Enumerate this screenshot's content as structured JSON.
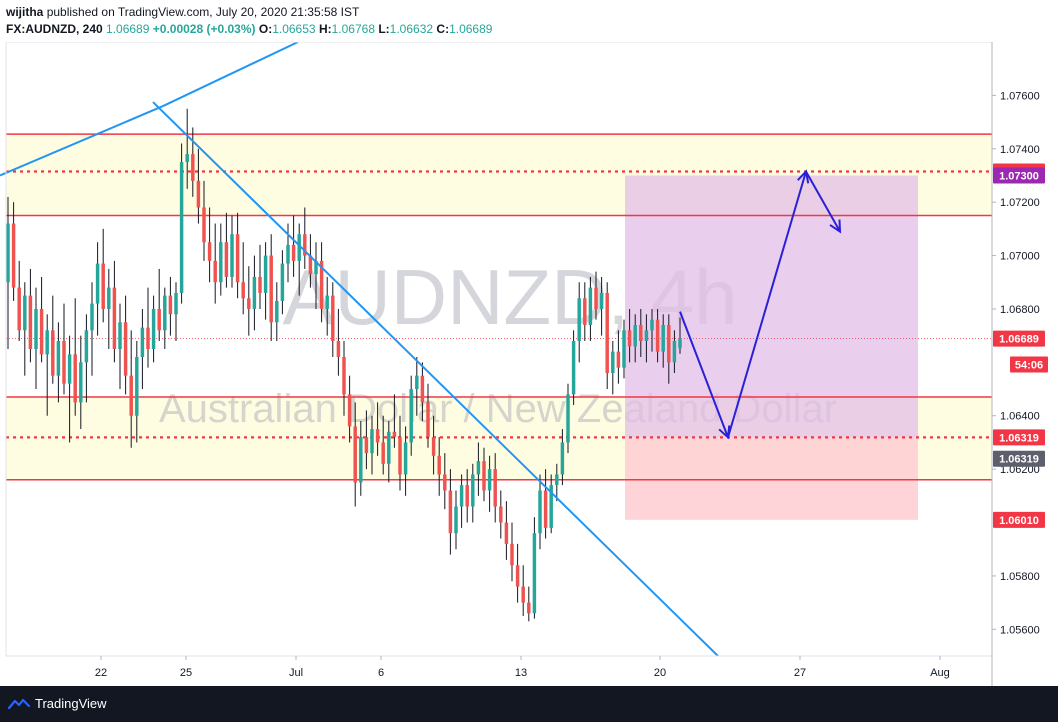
{
  "header": {
    "author": "wijitha",
    "published_text": "published on TradingView.com, July 20, 2020 21:35:58 IST",
    "symbol_interval": "FX:AUDNZD, 240",
    "last": "1.06689",
    "change": "+0.00028 (+0.03%)",
    "open_label": "O:",
    "open": "1.06653",
    "high_label": "H:",
    "high": "1.06768",
    "low_label": "L:",
    "low": "1.06632",
    "close_label": "C:",
    "close": "1.06689",
    "up_arrow": "▲"
  },
  "footer": {
    "logo_text": "TradingView"
  },
  "chart_data": {
    "type": "candlestick",
    "symbol": "AUDNZD",
    "interval": "4h",
    "watermark": {
      "symbol": "AUDNZD, 4h",
      "description": "Australian Dollar / New Zealand Dollar"
    },
    "x_tick_labels": [
      "22",
      "25",
      "Jul",
      "6",
      "13",
      "20",
      "27",
      "Aug"
    ],
    "y_tick_labels": [
      "1.07600",
      "1.07400",
      "1.07200",
      "1.07000",
      "1.06800",
      "1.06400",
      "1.06200",
      "1.05800",
      "1.05600"
    ],
    "ylim": [
      1.055,
      1.078
    ],
    "colors": {
      "up": "#26a69a",
      "down": "#ef5350",
      "zone_fill": "#fffde1",
      "level_line": "#f23645",
      "trendline": "#2196f3",
      "projection": "#2a21d6",
      "target_zone": "#e1bee7",
      "stop_zone": "#ffcdd2",
      "price_tag_red": "#f23645",
      "price_tag_purple": "#9c27b0",
      "price_tag_gray": "#5d606b"
    },
    "price_tags": [
      {
        "label": "1.07315",
        "value": 1.07315,
        "color": "#f23645"
      },
      {
        "label": "1.07300",
        "value": 1.073,
        "color": "#9c27b0"
      },
      {
        "label": "1.06689",
        "value": 1.06689,
        "color": "#f23645"
      },
      {
        "label": "54:06",
        "value": 1.06592,
        "color": "#f23645"
      },
      {
        "label": "1.06319",
        "value": 1.06319,
        "color": "#f23645"
      },
      {
        "label": "1.06319",
        "value": 1.06239,
        "color": "#5d606b"
      },
      {
        "label": "1.06010",
        "value": 1.0601,
        "color": "#f23645"
      }
    ],
    "horizontal_levels": {
      "solid": [
        1.07455,
        1.0715,
        1.0647,
        1.0616
      ],
      "dotted": [
        1.07315,
        1.06319
      ],
      "current_price": 1.06689
    },
    "zones": [
      {
        "top": 1.07455,
        "bottom": 1.0715
      },
      {
        "top": 1.0647,
        "bottom": 1.0616
      }
    ],
    "position_tool": {
      "entry": 1.06319,
      "target": 1.073,
      "stop": 1.0601,
      "from_day": 18.25,
      "to_day": 31.25
    },
    "trendlines": [
      {
        "from": [
          -1.0,
          1.073
        ],
        "to": [
          24.0,
          1.0755
        ]
      },
      {
        "from": [
          23.7,
          1.0756
        ],
        "to": [
          41.5,
          1.0545
        ]
      },
      {
        "from": [
          -1.0,
          1.073
        ],
        "to": [
          5.6,
          1.0792
        ]
      }
    ],
    "projection_path": [
      [
        20.8,
        1.0679
      ],
      [
        23.2,
        1.06319
      ],
      [
        27.3,
        1.07315
      ],
      [
        28.3,
        1.0709
      ]
    ],
    "x_day_ticks": [
      22,
      25,
      31,
      36,
      43,
      50,
      57,
      62
    ],
    "candles": [
      {
        "o": 1.069,
        "h": 1.0722,
        "l": 1.0665,
        "c": 1.0712
      },
      {
        "o": 1.0712,
        "h": 1.072,
        "l": 1.0683,
        "c": 1.0688
      },
      {
        "o": 1.0688,
        "h": 1.0698,
        "l": 1.0668,
        "c": 1.0672
      },
      {
        "o": 1.0672,
        "h": 1.069,
        "l": 1.0655,
        "c": 1.0685
      },
      {
        "o": 1.0685,
        "h": 1.0695,
        "l": 1.066,
        "c": 1.0665
      },
      {
        "o": 1.0665,
        "h": 1.0688,
        "l": 1.065,
        "c": 1.068
      },
      {
        "o": 1.068,
        "h": 1.0692,
        "l": 1.066,
        "c": 1.0663
      },
      {
        "o": 1.0663,
        "h": 1.0678,
        "l": 1.064,
        "c": 1.0672
      },
      {
        "o": 1.0672,
        "h": 1.0685,
        "l": 1.0652,
        "c": 1.0655
      },
      {
        "o": 1.0655,
        "h": 1.0675,
        "l": 1.0645,
        "c": 1.0668
      },
      {
        "o": 1.0668,
        "h": 1.0682,
        "l": 1.0648,
        "c": 1.0652
      },
      {
        "o": 1.0652,
        "h": 1.067,
        "l": 1.063,
        "c": 1.0663
      },
      {
        "o": 1.0663,
        "h": 1.0684,
        "l": 1.064,
        "c": 1.0645
      },
      {
        "o": 1.0645,
        "h": 1.067,
        "l": 1.0635,
        "c": 1.066
      },
      {
        "o": 1.066,
        "h": 1.0678,
        "l": 1.0645,
        "c": 1.0672
      },
      {
        "o": 1.0672,
        "h": 1.069,
        "l": 1.0655,
        "c": 1.0682
      },
      {
        "o": 1.0682,
        "h": 1.0705,
        "l": 1.067,
        "c": 1.0697
      },
      {
        "o": 1.0697,
        "h": 1.071,
        "l": 1.0675,
        "c": 1.068
      },
      {
        "o": 1.068,
        "h": 1.0695,
        "l": 1.0665,
        "c": 1.0688
      },
      {
        "o": 1.0688,
        "h": 1.0698,
        "l": 1.066,
        "c": 1.0665
      },
      {
        "o": 1.0665,
        "h": 1.0682,
        "l": 1.065,
        "c": 1.0675
      },
      {
        "o": 1.0675,
        "h": 1.0685,
        "l": 1.0648,
        "c": 1.0655
      },
      {
        "o": 1.0655,
        "h": 1.0672,
        "l": 1.0628,
        "c": 1.064
      },
      {
        "o": 1.064,
        "h": 1.0668,
        "l": 1.063,
        "c": 1.0662
      },
      {
        "o": 1.0662,
        "h": 1.068,
        "l": 1.065,
        "c": 1.0673
      },
      {
        "o": 1.0673,
        "h": 1.0688,
        "l": 1.0658,
        "c": 1.0665
      },
      {
        "o": 1.0665,
        "h": 1.0685,
        "l": 1.066,
        "c": 1.068
      },
      {
        "o": 1.068,
        "h": 1.0695,
        "l": 1.0668,
        "c": 1.0672
      },
      {
        "o": 1.0672,
        "h": 1.0688,
        "l": 1.0665,
        "c": 1.0685
      },
      {
        "o": 1.0685,
        "h": 1.0692,
        "l": 1.067,
        "c": 1.0678
      },
      {
        "o": 1.0678,
        "h": 1.069,
        "l": 1.0668,
        "c": 1.0686
      },
      {
        "o": 1.0686,
        "h": 1.0742,
        "l": 1.0682,
        "c": 1.0735
      },
      {
        "o": 1.0735,
        "h": 1.0755,
        "l": 1.0725,
        "c": 1.0738
      },
      {
        "o": 1.0738,
        "h": 1.0748,
        "l": 1.0722,
        "c": 1.0728
      },
      {
        "o": 1.0728,
        "h": 1.074,
        "l": 1.0712,
        "c": 1.0718
      },
      {
        "o": 1.0718,
        "h": 1.0728,
        "l": 1.0698,
        "c": 1.0705
      },
      {
        "o": 1.0705,
        "h": 1.0718,
        "l": 1.069,
        "c": 1.0698
      },
      {
        "o": 1.0698,
        "h": 1.0712,
        "l": 1.0682,
        "c": 1.069
      },
      {
        "o": 1.069,
        "h": 1.0712,
        "l": 1.0685,
        "c": 1.0705
      },
      {
        "o": 1.0705,
        "h": 1.0716,
        "l": 1.0688,
        "c": 1.0692
      },
      {
        "o": 1.0692,
        "h": 1.0715,
        "l": 1.0688,
        "c": 1.0708
      },
      {
        "o": 1.0708,
        "h": 1.0716,
        "l": 1.0684,
        "c": 1.069
      },
      {
        "o": 1.069,
        "h": 1.0705,
        "l": 1.0678,
        "c": 1.0684
      },
      {
        "o": 1.0684,
        "h": 1.0696,
        "l": 1.067,
        "c": 1.068
      },
      {
        "o": 1.068,
        "h": 1.07,
        "l": 1.0672,
        "c": 1.0692
      },
      {
        "o": 1.0692,
        "h": 1.0704,
        "l": 1.068,
        "c": 1.0686
      },
      {
        "o": 1.0686,
        "h": 1.0705,
        "l": 1.0676,
        "c": 1.07
      },
      {
        "o": 1.07,
        "h": 1.0708,
        "l": 1.0668,
        "c": 1.0675
      },
      {
        "o": 1.0675,
        "h": 1.069,
        "l": 1.0668,
        "c": 1.0683
      },
      {
        "o": 1.0683,
        "h": 1.0702,
        "l": 1.0678,
        "c": 1.0697
      },
      {
        "o": 1.0697,
        "h": 1.0712,
        "l": 1.069,
        "c": 1.0704
      },
      {
        "o": 1.0704,
        "h": 1.0715,
        "l": 1.0692,
        "c": 1.0698
      },
      {
        "o": 1.0698,
        "h": 1.0712,
        "l": 1.0685,
        "c": 1.0708
      },
      {
        "o": 1.0708,
        "h": 1.0718,
        "l": 1.0695,
        "c": 1.07
      },
      {
        "o": 1.07,
        "h": 1.0708,
        "l": 1.0688,
        "c": 1.0693
      },
      {
        "o": 1.0693,
        "h": 1.0705,
        "l": 1.068,
        "c": 1.0698
      },
      {
        "o": 1.0698,
        "h": 1.0705,
        "l": 1.0675,
        "c": 1.068
      },
      {
        "o": 1.068,
        "h": 1.0692,
        "l": 1.067,
        "c": 1.0685
      },
      {
        "o": 1.0685,
        "h": 1.069,
        "l": 1.0662,
        "c": 1.0668
      },
      {
        "o": 1.0668,
        "h": 1.068,
        "l": 1.0655,
        "c": 1.0662
      },
      {
        "o": 1.0662,
        "h": 1.0668,
        "l": 1.064,
        "c": 1.0648
      },
      {
        "o": 1.0648,
        "h": 1.0655,
        "l": 1.063,
        "c": 1.0636
      },
      {
        "o": 1.0636,
        "h": 1.0645,
        "l": 1.0606,
        "c": 1.0615
      },
      {
        "o": 1.0615,
        "h": 1.0638,
        "l": 1.061,
        "c": 1.0632
      },
      {
        "o": 1.0632,
        "h": 1.0642,
        "l": 1.062,
        "c": 1.0626
      },
      {
        "o": 1.0626,
        "h": 1.064,
        "l": 1.0618,
        "c": 1.0635
      },
      {
        "o": 1.0635,
        "h": 1.0645,
        "l": 1.0625,
        "c": 1.063
      },
      {
        "o": 1.063,
        "h": 1.064,
        "l": 1.0618,
        "c": 1.0622
      },
      {
        "o": 1.0622,
        "h": 1.0638,
        "l": 1.0615,
        "c": 1.0634
      },
      {
        "o": 1.0634,
        "h": 1.0648,
        "l": 1.0628,
        "c": 1.0632
      },
      {
        "o": 1.0632,
        "h": 1.064,
        "l": 1.0612,
        "c": 1.0618
      },
      {
        "o": 1.0618,
        "h": 1.0636,
        "l": 1.061,
        "c": 1.063
      },
      {
        "o": 1.063,
        "h": 1.0655,
        "l": 1.0625,
        "c": 1.065
      },
      {
        "o": 1.065,
        "h": 1.0662,
        "l": 1.064,
        "c": 1.0655
      },
      {
        "o": 1.0655,
        "h": 1.066,
        "l": 1.0638,
        "c": 1.0645
      },
      {
        "o": 1.0645,
        "h": 1.0652,
        "l": 1.0628,
        "c": 1.0632
      },
      {
        "o": 1.0632,
        "h": 1.064,
        "l": 1.0618,
        "c": 1.0625
      },
      {
        "o": 1.0625,
        "h": 1.0632,
        "l": 1.061,
        "c": 1.0618
      },
      {
        "o": 1.0618,
        "h": 1.0626,
        "l": 1.0605,
        "c": 1.0612
      },
      {
        "o": 1.0612,
        "h": 1.062,
        "l": 1.0588,
        "c": 1.0596
      },
      {
        "o": 1.0596,
        "h": 1.0612,
        "l": 1.059,
        "c": 1.0606
      },
      {
        "o": 1.0606,
        "h": 1.0618,
        "l": 1.0598,
        "c": 1.0614
      },
      {
        "o": 1.0614,
        "h": 1.062,
        "l": 1.06,
        "c": 1.0606
      },
      {
        "o": 1.0606,
        "h": 1.0622,
        "l": 1.06,
        "c": 1.0618
      },
      {
        "o": 1.0618,
        "h": 1.063,
        "l": 1.061,
        "c": 1.0623
      },
      {
        "o": 1.0623,
        "h": 1.0628,
        "l": 1.0608,
        "c": 1.0612
      },
      {
        "o": 1.0612,
        "h": 1.0625,
        "l": 1.0604,
        "c": 1.062
      },
      {
        "o": 1.062,
        "h": 1.0626,
        "l": 1.06,
        "c": 1.0606
      },
      {
        "o": 1.0606,
        "h": 1.0612,
        "l": 1.0594,
        "c": 1.06
      },
      {
        "o": 1.06,
        "h": 1.0608,
        "l": 1.0586,
        "c": 1.0592
      },
      {
        "o": 1.0592,
        "h": 1.06,
        "l": 1.0578,
        "c": 1.0584
      },
      {
        "o": 1.0584,
        "h": 1.0592,
        "l": 1.057,
        "c": 1.0576
      },
      {
        "o": 1.0576,
        "h": 1.0584,
        "l": 1.0565,
        "c": 1.057
      },
      {
        "o": 1.057,
        "h": 1.0576,
        "l": 1.0563,
        "c": 1.0566
      },
      {
        "o": 1.0566,
        "h": 1.0602,
        "l": 1.0564,
        "c": 1.0596
      },
      {
        "o": 1.0596,
        "h": 1.0618,
        "l": 1.059,
        "c": 1.0612
      },
      {
        "o": 1.0612,
        "h": 1.062,
        "l": 1.0594,
        "c": 1.0598
      },
      {
        "o": 1.0598,
        "h": 1.0618,
        "l": 1.0596,
        "c": 1.0614
      },
      {
        "o": 1.0614,
        "h": 1.0622,
        "l": 1.0608,
        "c": 1.0618
      },
      {
        "o": 1.0618,
        "h": 1.0635,
        "l": 1.0614,
        "c": 1.063
      },
      {
        "o": 1.063,
        "h": 1.0652,
        "l": 1.0626,
        "c": 1.0648
      },
      {
        "o": 1.0648,
        "h": 1.0672,
        "l": 1.0644,
        "c": 1.0668
      },
      {
        "o": 1.0668,
        "h": 1.069,
        "l": 1.066,
        "c": 1.0684
      },
      {
        "o": 1.0684,
        "h": 1.069,
        "l": 1.0668,
        "c": 1.0674
      },
      {
        "o": 1.0674,
        "h": 1.0692,
        "l": 1.0668,
        "c": 1.0688
      },
      {
        "o": 1.0688,
        "h": 1.0694,
        "l": 1.0676,
        "c": 1.068
      },
      {
        "o": 1.068,
        "h": 1.0692,
        "l": 1.067,
        "c": 1.0686
      },
      {
        "o": 1.0686,
        "h": 1.069,
        "l": 1.065,
        "c": 1.0656
      },
      {
        "o": 1.0656,
        "h": 1.0668,
        "l": 1.0648,
        "c": 1.0664
      },
      {
        "o": 1.0664,
        "h": 1.0672,
        "l": 1.0652,
        "c": 1.0658
      },
      {
        "o": 1.0658,
        "h": 1.0676,
        "l": 1.0654,
        "c": 1.0672
      },
      {
        "o": 1.0672,
        "h": 1.068,
        "l": 1.066,
        "c": 1.0666
      },
      {
        "o": 1.0666,
        "h": 1.0678,
        "l": 1.066,
        "c": 1.0674
      },
      {
        "o": 1.0674,
        "h": 1.068,
        "l": 1.0662,
        "c": 1.0668
      },
      {
        "o": 1.0668,
        "h": 1.0678,
        "l": 1.066,
        "c": 1.0672
      },
      {
        "o": 1.0672,
        "h": 1.068,
        "l": 1.0664,
        "c": 1.0676
      },
      {
        "o": 1.0676,
        "h": 1.068,
        "l": 1.066,
        "c": 1.0664
      },
      {
        "o": 1.0664,
        "h": 1.0678,
        "l": 1.0658,
        "c": 1.0674
      },
      {
        "o": 1.0674,
        "h": 1.0678,
        "l": 1.0652,
        "c": 1.066
      },
      {
        "o": 1.066,
        "h": 1.0672,
        "l": 1.0656,
        "c": 1.0668
      },
      {
        "o": 1.06653,
        "h": 1.06768,
        "l": 1.06632,
        "c": 1.06689
      }
    ]
  }
}
